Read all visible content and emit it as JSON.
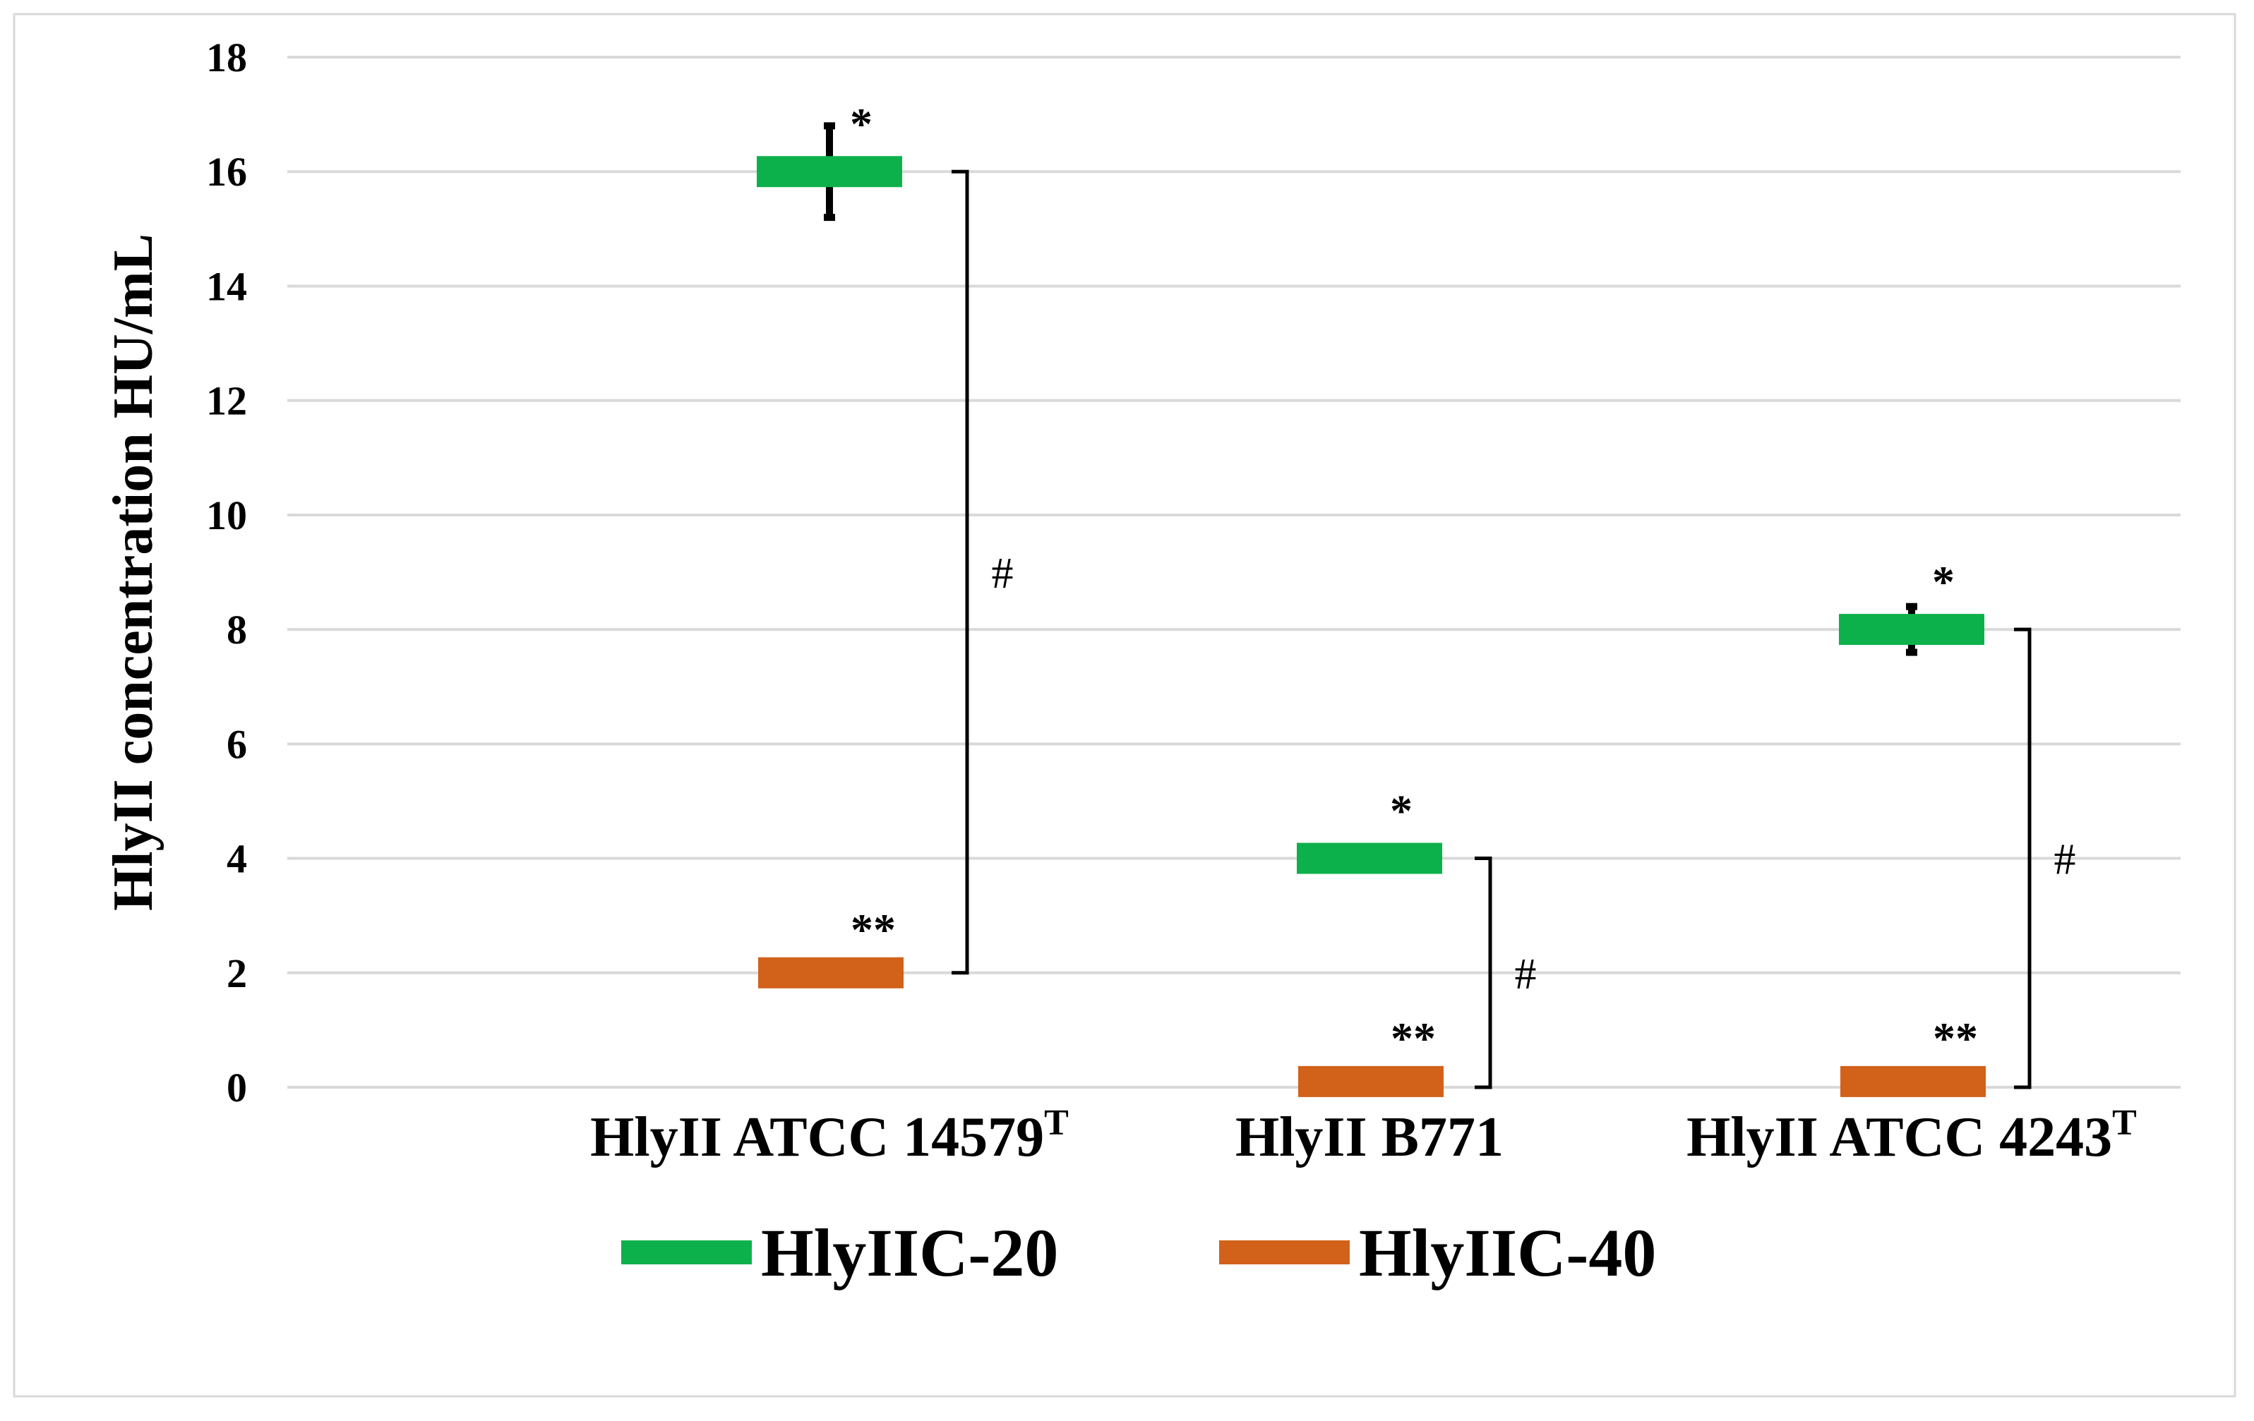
{
  "chart_data": {
    "type": "line",
    "title": "",
    "xlabel": "",
    "ylabel": "HlyII concentration HU/mL",
    "ylim": [
      0,
      18
    ],
    "yticks": [
      "0",
      "2",
      "4",
      "6",
      "8",
      "10",
      "12",
      "14",
      "16",
      "18"
    ],
    "grid": true,
    "legend_position": "bottom",
    "categories": [
      {
        "label": "HlyII ATCC 14579",
        "sup": "T"
      },
      {
        "label": "HlyII B771",
        "sup": ""
      },
      {
        "label": "HlyII ATCC 4243",
        "sup": "T"
      }
    ],
    "series": [
      {
        "name": "HlyIIC-20",
        "color": "#0db14b",
        "values": [
          16,
          4,
          8
        ],
        "error": [
          0.8,
          0.1,
          0.4
        ],
        "marks": [
          "*",
          "*",
          "*"
        ]
      },
      {
        "name": "HlyIIC-40",
        "color": "#d2611a",
        "values": [
          2,
          0.1,
          0.1
        ],
        "error": [
          0,
          0,
          0
        ],
        "marks": [
          "**",
          "**",
          "**"
        ]
      }
    ],
    "brackets": [
      {
        "category": 0,
        "from": 16,
        "to": 2,
        "label": "#"
      },
      {
        "category": 1,
        "from": 4,
        "to": 0,
        "label": "#"
      },
      {
        "category": 2,
        "from": 8,
        "to": 0,
        "label": "#"
      }
    ]
  }
}
